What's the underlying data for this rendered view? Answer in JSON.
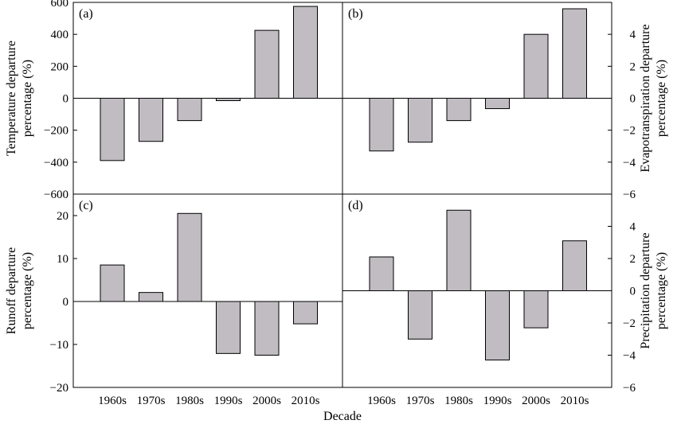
{
  "figure": {
    "xlabel": "Decade"
  },
  "chart_data": [
    {
      "panel": "(a)",
      "type": "bar",
      "categories": [
        "1960s",
        "1970s",
        "1980s",
        "1990s",
        "2000s",
        "2010s"
      ],
      "values": [
        -390,
        -270,
        -140,
        -15,
        425,
        575
      ],
      "ylabel_lines": [
        "Temperature departure",
        "percentage (%)"
      ],
      "ylim": [
        -600,
        600
      ],
      "yticks": [
        -600,
        -400,
        -200,
        0,
        200,
        400,
        600
      ],
      "axis_side": "left",
      "bar_color": "#c0bcc2"
    },
    {
      "panel": "(b)",
      "type": "bar",
      "categories": [
        "1960s",
        "1970s",
        "1980s",
        "1990s",
        "2000s",
        "2010s"
      ],
      "values": [
        -3.3,
        -2.75,
        -1.4,
        -0.65,
        4.0,
        5.6
      ],
      "ylabel_lines": [
        "Evapotranspiration departure",
        "percentage (%)"
      ],
      "ylim": [
        -6,
        6
      ],
      "yticks": [
        -6,
        -4,
        -2,
        0,
        2,
        4
      ],
      "axis_side": "right",
      "bar_color": "#c0bcc2"
    },
    {
      "panel": "(c)",
      "type": "bar",
      "categories": [
        "1960s",
        "1970s",
        "1980s",
        "1990s",
        "2000s",
        "2010s"
      ],
      "values": [
        8.5,
        2.1,
        20.5,
        -12.1,
        -12.5,
        -5.2
      ],
      "ylabel_lines": [
        "Runoff departure",
        "percentage (%)"
      ],
      "ylim": [
        -20,
        25
      ],
      "yticks": [
        -20,
        -10,
        0,
        10,
        20
      ],
      "axis_side": "left",
      "bar_color": "#c0bcc2"
    },
    {
      "panel": "(d)",
      "type": "bar",
      "categories": [
        "1960s",
        "1970s",
        "1980s",
        "1990s",
        "2000s",
        "2010s"
      ],
      "values": [
        2.1,
        -3.0,
        5.0,
        -4.3,
        -2.3,
        3.1
      ],
      "ylabel_lines": [
        "Precipitation departure",
        "percentage (%)"
      ],
      "ylim": [
        -6,
        6
      ],
      "yticks": [
        -6,
        -4,
        -2,
        0,
        2,
        4
      ],
      "axis_side": "right",
      "bar_color": "#c0bcc2"
    }
  ]
}
